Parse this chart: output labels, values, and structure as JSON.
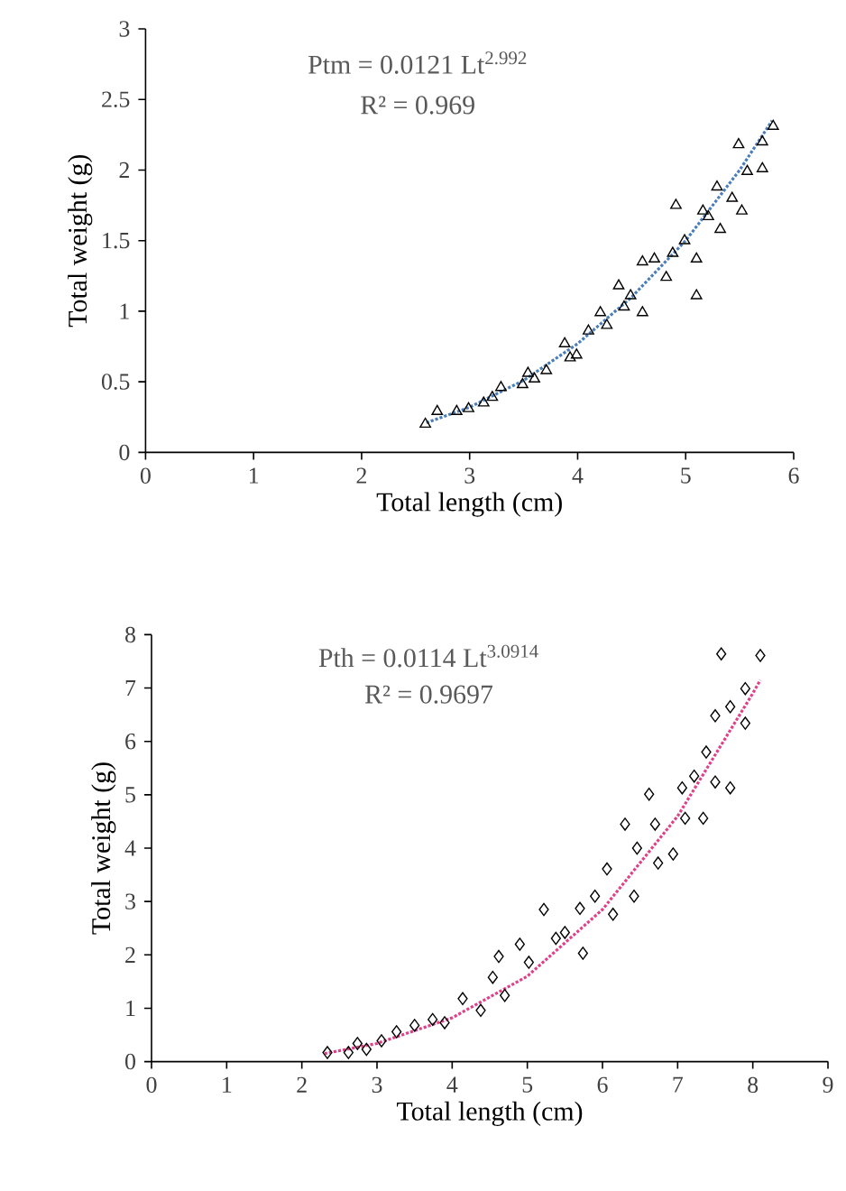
{
  "chart_data": [
    {
      "type": "scatter",
      "xlabel": "Total length (cm)",
      "ylabel": "Total weight (g)",
      "xlim": [
        0,
        6
      ],
      "ylim": [
        0,
        3
      ],
      "xticks": [
        0,
        1,
        2,
        3,
        4,
        5,
        6
      ],
      "yticks": [
        0,
        0.5,
        1,
        1.5,
        2,
        2.5,
        3
      ],
      "annotations": [
        "Ptm = 0.0121 Lt$^{2.992}$",
        "R² = 0.969"
      ],
      "series": [
        {
          "color": "#000000",
          "marker": "triangle",
          "x": [
            2.59,
            2.7,
            2.88,
            2.99,
            3.13,
            3.21,
            3.29,
            3.49,
            3.54,
            3.6,
            3.71,
            3.88,
            3.93,
            3.99,
            4.1,
            4.21,
            4.27,
            4.38,
            4.43,
            4.49,
            4.6,
            4.6,
            4.71,
            4.82,
            4.88,
            4.91,
            4.99,
            5.1,
            5.1,
            5.16,
            5.21,
            5.29,
            5.32,
            5.43,
            5.49,
            5.52,
            5.57,
            5.71,
            5.71,
            5.81
          ],
          "values": [
            0.2,
            0.29,
            0.29,
            0.31,
            0.35,
            0.39,
            0.46,
            0.48,
            0.56,
            0.52,
            0.58,
            0.77,
            0.67,
            0.69,
            0.86,
            0.99,
            0.9,
            1.18,
            1.03,
            1.11,
            0.99,
            1.35,
            1.37,
            1.24,
            1.41,
            1.75,
            1.5,
            1.11,
            1.37,
            1.71,
            1.67,
            1.88,
            1.58,
            1.8,
            2.18,
            1.71,
            1.99,
            2.01,
            2.2,
            2.31
          ]
        },
        {
          "type": "line",
          "color": "#4a7ebb",
          "marker": "none",
          "line_style": "dotted",
          "x": [
            2.6,
            3,
            3.5,
            4,
            4.5,
            5,
            5.5,
            5.8
          ],
          "values": [
            0.21,
            0.32,
            0.51,
            0.77,
            1.1,
            1.5,
            2.0,
            2.35
          ]
        }
      ]
    },
    {
      "type": "scatter",
      "xlabel": "Total length (cm)",
      "ylabel": "Total weight (g)",
      "xlim": [
        0,
        9
      ],
      "ylim": [
        0,
        8
      ],
      "xticks": [
        0,
        1,
        2,
        3,
        4,
        5,
        6,
        7,
        8,
        9
      ],
      "yticks": [
        0,
        1,
        2,
        3,
        4,
        5,
        6,
        7,
        8
      ],
      "annotations": [
        "Pth = 0.0114 Lt$^{3.0914}$",
        "R² = 0.9697"
      ],
      "series": [
        {
          "color": "#000000",
          "marker": "diamond",
          "x": [
            2.34,
            2.62,
            2.74,
            2.86,
            3.06,
            3.26,
            3.5,
            3.74,
            3.9,
            4.14,
            4.38,
            4.54,
            4.62,
            4.7,
            4.9,
            5.02,
            5.22,
            5.38,
            5.5,
            5.7,
            5.74,
            5.9,
            6.06,
            6.14,
            6.3,
            6.42,
            6.46,
            6.62,
            6.7,
            6.74,
            6.94,
            7.06,
            7.1,
            7.22,
            7.34,
            7.38,
            7.5,
            7.5,
            7.58,
            7.7,
            7.7,
            7.9,
            7.9,
            8.1
          ],
          "values": [
            0.17,
            0.17,
            0.34,
            0.23,
            0.39,
            0.56,
            0.68,
            0.79,
            0.73,
            1.18,
            0.96,
            1.58,
            1.97,
            1.24,
            2.2,
            1.86,
            2.85,
            2.31,
            2.42,
            2.87,
            2.03,
            3.1,
            3.61,
            2.76,
            4.45,
            3.1,
            4.0,
            5.01,
            4.45,
            3.72,
            3.89,
            5.13,
            4.56,
            5.35,
            4.56,
            5.8,
            6.48,
            5.24,
            7.64,
            5.13,
            6.65,
            6.99,
            6.34,
            7.61
          ]
        },
        {
          "type": "line",
          "color": "#e0408a",
          "marker": "none",
          "line_style": "dotted",
          "x": [
            2.3,
            3,
            4,
            5,
            6,
            7,
            8,
            8.1
          ],
          "values": [
            0.15,
            0.34,
            0.82,
            1.6,
            2.85,
            4.6,
            6.9,
            7.15
          ]
        }
      ]
    }
  ]
}
